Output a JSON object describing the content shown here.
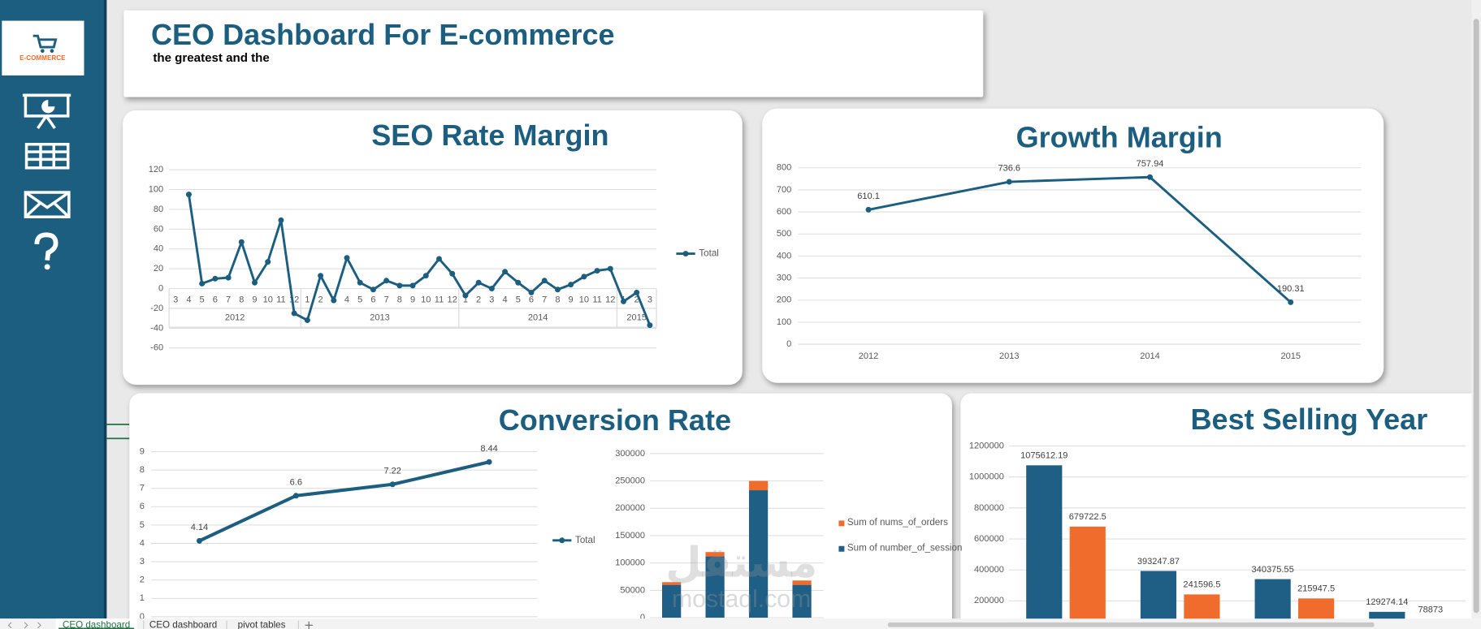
{
  "header": {
    "title": "CEO Dashboard For E-commerce",
    "subtitle": "the greatest and the"
  },
  "sidebar": {
    "logo_text": "E-COMMERCE"
  },
  "chart_data": [
    {
      "type": "line",
      "title": "SEO Rate Margin",
      "category_groups": [
        {
          "label": "2012",
          "categories": [
            "3",
            "4",
            "5",
            "6",
            "7",
            "8",
            "9",
            "10",
            "11",
            "12"
          ]
        },
        {
          "label": "2013",
          "categories": [
            "1",
            "2",
            "3",
            "4",
            "5",
            "6",
            "7",
            "8",
            "9",
            "10",
            "11",
            "12"
          ]
        },
        {
          "label": "2014",
          "categories": [
            "1",
            "2",
            "3",
            "4",
            "5",
            "6",
            "7",
            "8",
            "9",
            "10",
            "11",
            "12"
          ]
        },
        {
          "label": "2015",
          "categories": [
            "1",
            "2",
            "3"
          ]
        }
      ],
      "series": [
        {
          "name": "Total",
          "color": "#1b5e80",
          "values": [
            null,
            95,
            5,
            10,
            11,
            47,
            6,
            27,
            69,
            -25,
            -32,
            13,
            -12,
            31,
            6,
            -1,
            8,
            3,
            3,
            13,
            30,
            15,
            -7,
            6,
            0,
            17,
            6,
            -4,
            8,
            -1,
            4,
            12,
            18,
            20,
            -13,
            -4,
            -37
          ]
        }
      ],
      "ylim": [
        -60,
        120
      ],
      "yticks": [
        -60,
        -40,
        -20,
        0,
        20,
        40,
        60,
        80,
        100,
        120
      ],
      "grid": true,
      "legend": "right"
    },
    {
      "type": "line",
      "title": "Growth Margin",
      "categories": [
        "2012",
        "2013",
        "2014",
        "2015"
      ],
      "series": [
        {
          "color": "#1b5e80",
          "values": [
            610.1,
            736.6,
            757.94,
            190.31
          ]
        }
      ],
      "data_labels": true,
      "ylim": [
        0,
        800
      ],
      "yticks": [
        0,
        100,
        200,
        300,
        400,
        500,
        600,
        700,
        800
      ],
      "grid": true
    },
    {
      "type": "line",
      "title": "Conversion Rate",
      "series": [
        {
          "name": "Total",
          "color": "#1b5e80",
          "values": [
            4.14,
            6.6,
            7.22,
            8.44
          ]
        }
      ],
      "data_labels": true,
      "ylim": [
        0,
        9
      ],
      "yticks": [
        0,
        1,
        2,
        3,
        4,
        5,
        6,
        7,
        8,
        9
      ],
      "grid": true,
      "legend": "right"
    },
    {
      "type": "bar",
      "stacked": true,
      "series": [
        {
          "name": "Sum of number_of_session",
          "color": "#1f5f85",
          "values": [
            60000,
            112000,
            233000,
            60000
          ]
        },
        {
          "name": "Sum of nums_of_orders",
          "color": "#ef6c2c",
          "values": [
            5000,
            8000,
            17000,
            8000
          ]
        }
      ],
      "ylim": [
        0,
        300000
      ],
      "yticks": [
        0,
        50000,
        100000,
        150000,
        200000,
        250000,
        300000
      ],
      "grid": true,
      "legend": "right"
    },
    {
      "type": "bar",
      "title": "Best Selling Year",
      "series": [
        {
          "color": "#1f5f85",
          "values": [
            1075612.19,
            393247.87,
            340375.55,
            129274.14
          ]
        },
        {
          "color": "#ef6c2c",
          "values": [
            679722.5,
            241596.5,
            215947.5,
            78873
          ]
        }
      ],
      "data_labels": true,
      "ylim": [
        0,
        1200000
      ],
      "yticks": [
        200000,
        400000,
        600000,
        800000,
        1000000,
        1200000
      ],
      "grid": true
    }
  ],
  "watermark": {
    "arabic": "مستقل",
    "latin": "mostaql.com"
  },
  "sheet_tabs": [
    "CEO dashboard",
    "CEO dashboard",
    "pivot tables"
  ]
}
